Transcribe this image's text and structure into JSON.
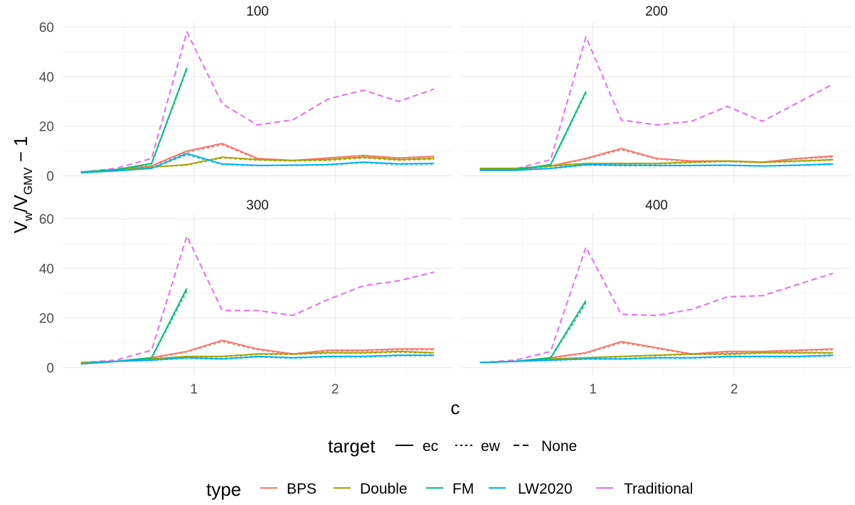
{
  "chart_data": {
    "type": "line",
    "facet_var": "n",
    "panels": [
      {
        "title": "100",
        "series": [
          {
            "type": "Traditional",
            "target": "None",
            "x": [
              0.2,
              0.45,
              0.7,
              0.95,
              1.2,
              1.45,
              1.7,
              1.95,
              2.2,
              2.45,
              2.7
            ],
            "y": [
              1.5,
              3,
              7,
              58,
              29,
              20.5,
              22.5,
              31,
              34.5,
              30,
              35
            ]
          },
          {
            "type": "BPS",
            "target": "ec",
            "x": [
              0.2,
              0.45,
              0.7,
              0.95,
              1.2,
              1.45,
              1.7,
              1.95,
              2.2,
              2.45,
              2.7
            ],
            "y": [
              1.5,
              2.5,
              4,
              10,
              13,
              7,
              6.2,
              7.2,
              8.2,
              7.2,
              7.8
            ]
          },
          {
            "type": "BPS",
            "target": "ew",
            "x": [
              0.2,
              0.45,
              0.7,
              0.95,
              1.2,
              1.45,
              1.7,
              1.95,
              2.2,
              2.45,
              2.7
            ],
            "y": [
              1.5,
              2.5,
              3.8,
              9.5,
              12.5,
              6.8,
              6,
              6.8,
              7.8,
              6.8,
              7.2
            ]
          },
          {
            "type": "Double",
            "target": "ec",
            "x": [
              0.2,
              0.45,
              0.7,
              0.95,
              1.2,
              1.45,
              1.7,
              1.95,
              2.2,
              2.45,
              2.7
            ],
            "y": [
              1.5,
              2.5,
              3.5,
              4.5,
              7.5,
              6.5,
              6.2,
              6.5,
              7.5,
              6.5,
              7
            ]
          },
          {
            "type": "Double",
            "target": "ew",
            "x": [
              0.2,
              0.45,
              0.7,
              0.95,
              1.2,
              1.45,
              1.7,
              1.95,
              2.2,
              2.45,
              2.7
            ],
            "y": [
              1.5,
              2.5,
              3.5,
              4.3,
              7.2,
              6.3,
              6,
              6.2,
              7.2,
              6.3,
              6.7
            ]
          },
          {
            "type": "FM",
            "target": "ec",
            "x": [
              0.2,
              0.45,
              0.7,
              0.95
            ],
            "y": [
              1.5,
              2.5,
              5,
              43.5
            ]
          },
          {
            "type": "FM",
            "target": "ew",
            "x": [
              0.2,
              0.45,
              0.7,
              0.95
            ],
            "y": [
              1.5,
              2.5,
              4.8,
              43
            ]
          },
          {
            "type": "LW2020",
            "target": "ec",
            "x": [
              0.2,
              0.45,
              0.7,
              0.95,
              1.2,
              1.45,
              1.7,
              1.95,
              2.2,
              2.45,
              2.7
            ],
            "y": [
              1.2,
              2,
              3,
              9,
              4.8,
              4.2,
              4.3,
              4.5,
              5.5,
              4.8,
              5
            ]
          },
          {
            "type": "LW2020",
            "target": "ew",
            "x": [
              0.2,
              0.45,
              0.7,
              0.95,
              1.2,
              1.45,
              1.7,
              1.95,
              2.2,
              2.45,
              2.7
            ],
            "y": [
              1.2,
              2,
              3,
              8.5,
              4.6,
              4.1,
              4.2,
              4.4,
              5.3,
              4.6,
              4.8
            ]
          }
        ]
      },
      {
        "title": "200",
        "series": [
          {
            "type": "Traditional",
            "target": "None",
            "x": [
              0.2,
              0.45,
              0.7,
              0.95,
              1.2,
              1.45,
              1.7,
              1.95,
              2.2,
              2.45,
              2.7
            ],
            "y": [
              2.5,
              2.8,
              6.5,
              56,
              22.5,
              20.5,
              22,
              28,
              22,
              29.5,
              37
            ]
          },
          {
            "type": "BPS",
            "target": "ec",
            "x": [
              0.2,
              0.45,
              0.7,
              0.95,
              1.2,
              1.45,
              1.7,
              1.95,
              2.2,
              2.45,
              2.7
            ],
            "y": [
              2.5,
              2.5,
              4,
              7,
              11,
              7,
              6,
              6,
              5.5,
              7,
              8
            ]
          },
          {
            "type": "BPS",
            "target": "ew",
            "x": [
              0.2,
              0.45,
              0.7,
              0.95,
              1.2,
              1.45,
              1.7,
              1.95,
              2.2,
              2.45,
              2.7
            ],
            "y": [
              2.5,
              2.5,
              3.8,
              6.8,
              10.5,
              6.8,
              5.8,
              5.8,
              5.3,
              6.8,
              7.6
            ]
          },
          {
            "type": "Double",
            "target": "ec",
            "x": [
              0.2,
              0.45,
              0.7,
              0.95,
              1.2,
              1.45,
              1.7,
              1.95,
              2.2,
              2.45,
              2.7
            ],
            "y": [
              3,
              3,
              4,
              5,
              5,
              5,
              5.5,
              6,
              5.5,
              6,
              6.5
            ]
          },
          {
            "type": "Double",
            "target": "ew",
            "x": [
              0.2,
              0.45,
              0.7,
              0.95,
              1.2,
              1.45,
              1.7,
              1.95,
              2.2,
              2.45,
              2.7
            ],
            "y": [
              3,
              3,
              3.8,
              4.8,
              4.8,
              4.8,
              5.3,
              5.8,
              5.3,
              5.8,
              6.3
            ]
          },
          {
            "type": "FM",
            "target": "ec",
            "x": [
              0.2,
              0.45,
              0.7,
              0.95
            ],
            "y": [
              2.5,
              2.5,
              4.5,
              34
            ]
          },
          {
            "type": "FM",
            "target": "ew",
            "x": [
              0.2,
              0.45,
              0.7,
              0.95
            ],
            "y": [
              2.5,
              2.5,
              4.3,
              33.5
            ]
          },
          {
            "type": "LW2020",
            "target": "ec",
            "x": [
              0.2,
              0.45,
              0.7,
              0.95,
              1.2,
              1.45,
              1.7,
              1.95,
              2.2,
              2.45,
              2.7
            ],
            "y": [
              2.2,
              2.2,
              3,
              4.5,
              4.3,
              4.2,
              4.2,
              4.3,
              4,
              4.3,
              4.8
            ]
          },
          {
            "type": "LW2020",
            "target": "ew",
            "x": [
              0.2,
              0.45,
              0.7,
              0.95,
              1.2,
              1.45,
              1.7,
              1.95,
              2.2,
              2.45,
              2.7
            ],
            "y": [
              2.2,
              2.2,
              2.9,
              4.3,
              4.1,
              4.1,
              4.1,
              4.2,
              3.9,
              4.2,
              4.6
            ]
          }
        ]
      },
      {
        "title": "300",
        "series": [
          {
            "type": "Traditional",
            "target": "None",
            "x": [
              0.2,
              0.45,
              0.7,
              0.95,
              1.2,
              1.45,
              1.7,
              1.95,
              2.2,
              2.45,
              2.7
            ],
            "y": [
              2,
              3,
              7,
              53,
              23,
              23,
              21,
              27.5,
              33,
              35,
              38.5
            ]
          },
          {
            "type": "BPS",
            "target": "ec",
            "x": [
              0.2,
              0.45,
              0.7,
              0.95,
              1.2,
              1.45,
              1.7,
              1.95,
              2.2,
              2.45,
              2.7
            ],
            "y": [
              2,
              2.5,
              4,
              6.5,
              11,
              7.5,
              5.5,
              7,
              7,
              7.5,
              7.5
            ]
          },
          {
            "type": "BPS",
            "target": "ew",
            "x": [
              0.2,
              0.45,
              0.7,
              0.95,
              1.2,
              1.45,
              1.7,
              1.95,
              2.2,
              2.45,
              2.7
            ],
            "y": [
              2,
              2.5,
              3.8,
              6.3,
              10.5,
              7.2,
              5.3,
              6.7,
              6.7,
              7.2,
              7.2
            ]
          },
          {
            "type": "Double",
            "target": "ec",
            "x": [
              0.2,
              0.45,
              0.7,
              0.95,
              1.2,
              1.45,
              1.7,
              1.95,
              2.2,
              2.45,
              2.7
            ],
            "y": [
              2,
              2.5,
              3.5,
              4.5,
              4.5,
              5.5,
              5.5,
              6,
              6,
              6.5,
              6
            ]
          },
          {
            "type": "Double",
            "target": "ew",
            "x": [
              0.2,
              0.45,
              0.7,
              0.95,
              1.2,
              1.45,
              1.7,
              1.95,
              2.2,
              2.45,
              2.7
            ],
            "y": [
              2,
              2.5,
              3.3,
              4.3,
              4.3,
              5.3,
              5.3,
              5.8,
              5.8,
              6.2,
              5.8
            ]
          },
          {
            "type": "FM",
            "target": "ec",
            "x": [
              0.2,
              0.45,
              0.7,
              0.95
            ],
            "y": [
              1.5,
              2.5,
              4,
              32
            ]
          },
          {
            "type": "FM",
            "target": "ew",
            "x": [
              0.2,
              0.45,
              0.7,
              0.95
            ],
            "y": [
              1.5,
              2.5,
              3.8,
              31
            ]
          },
          {
            "type": "LW2020",
            "target": "ec",
            "x": [
              0.2,
              0.45,
              0.7,
              0.95,
              1.2,
              1.45,
              1.7,
              1.95,
              2.2,
              2.45,
              2.7
            ],
            "y": [
              1.5,
              2.5,
              3,
              4,
              3.5,
              4.5,
              4,
              4.5,
              4.5,
              5,
              5
            ]
          },
          {
            "type": "LW2020",
            "target": "ew",
            "x": [
              0.2,
              0.45,
              0.7,
              0.95,
              1.2,
              1.45,
              1.7,
              1.95,
              2.2,
              2.45,
              2.7
            ],
            "y": [
              1.5,
              2.5,
              2.9,
              3.8,
              3.4,
              4.3,
              3.8,
              4.3,
              4.3,
              4.8,
              4.8
            ]
          }
        ]
      },
      {
        "title": "400",
        "series": [
          {
            "type": "Traditional",
            "target": "None",
            "x": [
              0.2,
              0.45,
              0.7,
              0.95,
              1.2,
              1.45,
              1.7,
              1.95,
              2.2,
              2.45,
              2.7
            ],
            "y": [
              2,
              3,
              6.5,
              48.5,
              21.5,
              21,
              23.5,
              28.5,
              29,
              33.5,
              38
            ]
          },
          {
            "type": "BPS",
            "target": "ec",
            "x": [
              0.2,
              0.45,
              0.7,
              0.95,
              1.2,
              1.45,
              1.7,
              1.95,
              2.2,
              2.45,
              2.7
            ],
            "y": [
              2,
              2.5,
              4,
              6,
              10.5,
              8,
              5.5,
              6.5,
              6.5,
              7,
              7.5
            ]
          },
          {
            "type": "BPS",
            "target": "ew",
            "x": [
              0.2,
              0.45,
              0.7,
              0.95,
              1.2,
              1.45,
              1.7,
              1.95,
              2.2,
              2.45,
              2.7
            ],
            "y": [
              2,
              2.5,
              3.8,
              5.8,
              10,
              7.7,
              5.3,
              6.2,
              6.2,
              6.7,
              7.2
            ]
          },
          {
            "type": "Double",
            "target": "ec",
            "x": [
              0.2,
              0.45,
              0.7,
              0.95,
              1.2,
              1.45,
              1.7,
              1.95,
              2.2,
              2.45,
              2.7
            ],
            "y": [
              2,
              2.5,
              3.5,
              4,
              4.5,
              5,
              5.5,
              5.5,
              6,
              6,
              6
            ]
          },
          {
            "type": "Double",
            "target": "ew",
            "x": [
              0.2,
              0.45,
              0.7,
              0.95,
              1.2,
              1.45,
              1.7,
              1.95,
              2.2,
              2.45,
              2.7
            ],
            "y": [
              2,
              2.5,
              3.3,
              3.8,
              4.3,
              4.8,
              5.3,
              5.3,
              5.8,
              5.8,
              5.8
            ]
          },
          {
            "type": "FM",
            "target": "ec",
            "x": [
              0.2,
              0.45,
              0.7,
              0.95
            ],
            "y": [
              2,
              2.5,
              4,
              27
            ]
          },
          {
            "type": "FM",
            "target": "ew",
            "x": [
              0.2,
              0.45,
              0.7,
              0.95
            ],
            "y": [
              2,
              2.5,
              3.8,
              26
            ]
          },
          {
            "type": "LW2020",
            "target": "ec",
            "x": [
              0.2,
              0.45,
              0.7,
              0.95,
              1.2,
              1.45,
              1.7,
              1.95,
              2.2,
              2.45,
              2.7
            ],
            "y": [
              2,
              2.5,
              3,
              3.5,
              3.5,
              4,
              4,
              4.5,
              4.5,
              4.5,
              5
            ]
          },
          {
            "type": "LW2020",
            "target": "ew",
            "x": [
              0.2,
              0.45,
              0.7,
              0.95,
              1.2,
              1.45,
              1.7,
              1.95,
              2.2,
              2.45,
              2.7
            ],
            "y": [
              2,
              2.5,
              2.9,
              3.4,
              3.4,
              3.8,
              3.8,
              4.3,
              4.3,
              4.3,
              4.8
            ]
          }
        ]
      }
    ],
    "xlabel": "c",
    "ylabel": "V_w / V_GMV − 1",
    "xlim": [
      0.07,
      2.83
    ],
    "ylim": [
      -3,
      62
    ],
    "xticks": [
      1,
      2
    ],
    "yticks": [
      0,
      20,
      40,
      60
    ],
    "grid": true,
    "legend_placement": "bottom",
    "legends": [
      {
        "title": "target",
        "aesthetic": "linetype",
        "entries": [
          {
            "label": "ec",
            "dash": "solid"
          },
          {
            "label": "ew",
            "dash": "dotted"
          },
          {
            "label": "None",
            "dash": "dashed"
          }
        ]
      },
      {
        "title": "type",
        "aesthetic": "colour",
        "entries": [
          {
            "label": "BPS",
            "color": "#F8766D"
          },
          {
            "label": "Double",
            "color": "#A3A500"
          },
          {
            "label": "FM",
            "color": "#00BF7D"
          },
          {
            "label": "LW2020",
            "color": "#00B0F6"
          },
          {
            "label": "Traditional",
            "color": "#E76BF3"
          }
        ]
      }
    ],
    "colors": {
      "BPS": "#F8766D",
      "Double": "#A3A500",
      "FM": "#00BF7D",
      "LW2020": "#00B0F6",
      "Traditional": "#E76BF3"
    }
  }
}
